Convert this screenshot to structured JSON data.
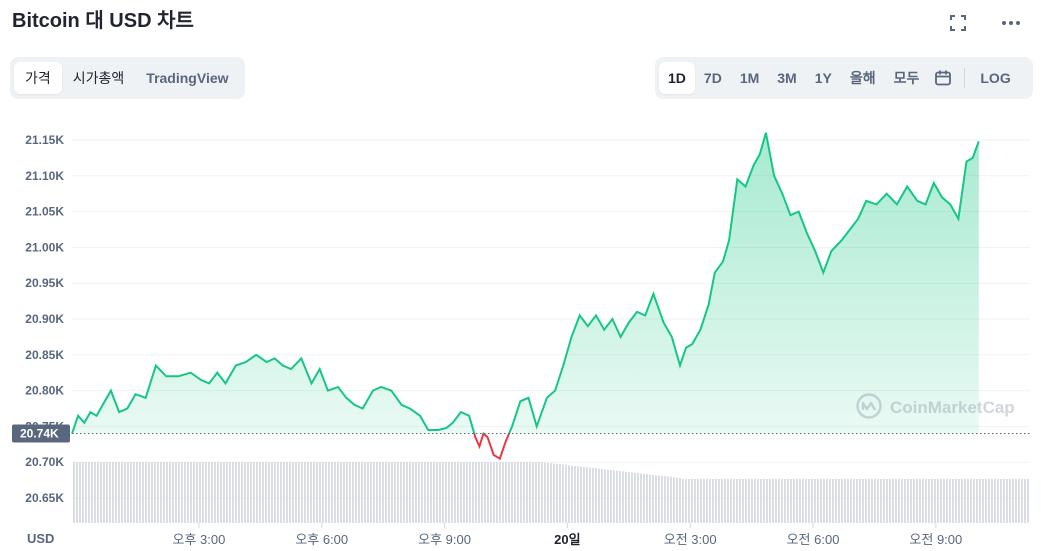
{
  "header": {
    "title": "Bitcoin 대 USD 차트",
    "fullscreen_icon": "fullscreen-icon",
    "more_icon": "more-icon"
  },
  "view_tabs": [
    "가격",
    "시가총액",
    "TradingView"
  ],
  "range_tabs": [
    "1D",
    "7D",
    "1M",
    "3M",
    "1Y",
    "올해",
    "모두"
  ],
  "range_calendar_icon": "calendar-icon",
  "log_label": "LOG",
  "currency_label": "USD",
  "watermark": "CoinMarketCap",
  "colors": {
    "up": "#16c784",
    "down": "#ea3943",
    "volume": "#d9dde3",
    "grid": "#eff2f5"
  },
  "chart_data": {
    "type": "area",
    "title": "",
    "xlabel": "USD",
    "ylabel": "",
    "ylim": [
      20.62,
      21.17
    ],
    "y_ticks": [
      20.65,
      20.7,
      20.75,
      20.8,
      20.85,
      20.9,
      20.95,
      21.0,
      21.05,
      21.1,
      21.15
    ],
    "y_tick_labels": [
      "20.65K",
      "20.70K",
      "20.75K",
      "20.80K",
      "20.85K",
      "20.90K",
      "20.95K",
      "21.00K",
      "21.05K",
      "21.10K",
      "21.15K"
    ],
    "x_range": [
      1.9,
      25.3
    ],
    "x_ticks": [
      {
        "t": 5,
        "label": "오후 3:00"
      },
      {
        "t": 8,
        "label": "오후 6:00"
      },
      {
        "t": 11,
        "label": "오후 9:00"
      },
      {
        "t": 14,
        "label": "20일"
      },
      {
        "t": 17,
        "label": "오전 3:00"
      },
      {
        "t": 20,
        "label": "오전 6:00"
      },
      {
        "t": 23,
        "label": "오전 9:00"
      }
    ],
    "reference_price": 20.74,
    "reference_label": "20.74K",
    "series": [
      {
        "values": [
          [
            1.9,
            20.74
          ],
          [
            2.05,
            20.765
          ],
          [
            2.2,
            20.755
          ],
          [
            2.35,
            20.77
          ],
          [
            2.5,
            20.765
          ],
          [
            2.65,
            20.78
          ],
          [
            2.85,
            20.8
          ],
          [
            3.05,
            20.77
          ],
          [
            3.25,
            20.775
          ],
          [
            3.45,
            20.795
          ],
          [
            3.7,
            20.79
          ],
          [
            3.95,
            20.835
          ],
          [
            4.2,
            20.82
          ],
          [
            4.5,
            20.82
          ],
          [
            4.8,
            20.825
          ],
          [
            5.05,
            20.815
          ],
          [
            5.25,
            20.81
          ],
          [
            5.45,
            20.825
          ],
          [
            5.65,
            20.81
          ],
          [
            5.9,
            20.835
          ],
          [
            6.15,
            20.84
          ],
          [
            6.4,
            20.85
          ],
          [
            6.65,
            20.84
          ],
          [
            6.85,
            20.845
          ],
          [
            7.05,
            20.835
          ],
          [
            7.25,
            20.83
          ],
          [
            7.5,
            20.845
          ],
          [
            7.75,
            20.81
          ],
          [
            7.95,
            20.83
          ],
          [
            8.15,
            20.8
          ],
          [
            8.4,
            20.805
          ],
          [
            8.6,
            20.79
          ],
          [
            8.8,
            20.78
          ],
          [
            9.0,
            20.775
          ],
          [
            9.25,
            20.8
          ],
          [
            9.45,
            20.805
          ],
          [
            9.7,
            20.8
          ],
          [
            9.95,
            20.78
          ],
          [
            10.15,
            20.775
          ],
          [
            10.4,
            20.765
          ],
          [
            10.6,
            20.745
          ],
          [
            10.85,
            20.745
          ],
          [
            11.05,
            20.748
          ],
          [
            11.2,
            20.755
          ],
          [
            11.4,
            20.77
          ],
          [
            11.6,
            20.765
          ],
          [
            11.75,
            20.735
          ],
          [
            11.85,
            20.722
          ],
          [
            11.95,
            20.74
          ],
          [
            12.05,
            20.735
          ],
          [
            12.2,
            20.71
          ],
          [
            12.35,
            20.705
          ],
          [
            12.5,
            20.73
          ],
          [
            12.65,
            20.75
          ],
          [
            12.85,
            20.785
          ],
          [
            13.05,
            20.79
          ],
          [
            13.25,
            20.75
          ],
          [
            13.5,
            20.79
          ],
          [
            13.7,
            20.8
          ],
          [
            13.9,
            20.835
          ],
          [
            14.1,
            20.875
          ],
          [
            14.3,
            20.905
          ],
          [
            14.5,
            20.89
          ],
          [
            14.7,
            20.905
          ],
          [
            14.9,
            20.885
          ],
          [
            15.1,
            20.9
          ],
          [
            15.3,
            20.875
          ],
          [
            15.5,
            20.895
          ],
          [
            15.7,
            20.91
          ],
          [
            15.9,
            20.905
          ],
          [
            16.1,
            20.935
          ],
          [
            16.35,
            20.895
          ],
          [
            16.55,
            20.875
          ],
          [
            16.75,
            20.835
          ],
          [
            16.9,
            20.86
          ],
          [
            17.05,
            20.865
          ],
          [
            17.25,
            20.885
          ],
          [
            17.45,
            20.92
          ],
          [
            17.6,
            20.965
          ],
          [
            17.8,
            20.98
          ],
          [
            17.95,
            21.01
          ],
          [
            18.15,
            21.095
          ],
          [
            18.35,
            21.085
          ],
          [
            18.55,
            21.115
          ],
          [
            18.7,
            21.13
          ],
          [
            18.85,
            21.16
          ],
          [
            19.05,
            21.1
          ],
          [
            19.25,
            21.075
          ],
          [
            19.45,
            21.045
          ],
          [
            19.65,
            21.05
          ],
          [
            19.85,
            21.02
          ],
          [
            20.05,
            20.995
          ],
          [
            20.25,
            20.965
          ],
          [
            20.45,
            20.995
          ],
          [
            20.7,
            21.01
          ],
          [
            20.9,
            21.025
          ],
          [
            21.1,
            21.04
          ],
          [
            21.3,
            21.065
          ],
          [
            21.55,
            21.06
          ],
          [
            21.8,
            21.075
          ],
          [
            22.05,
            21.06
          ],
          [
            22.3,
            21.085
          ],
          [
            22.55,
            21.065
          ],
          [
            22.75,
            21.06
          ],
          [
            22.95,
            21.09
          ],
          [
            23.15,
            21.07
          ],
          [
            23.35,
            21.06
          ],
          [
            23.55,
            21.04
          ],
          [
            23.75,
            21.12
          ],
          [
            23.9,
            21.125
          ],
          [
            24.05,
            21.148
          ]
        ]
      }
    ]
  }
}
